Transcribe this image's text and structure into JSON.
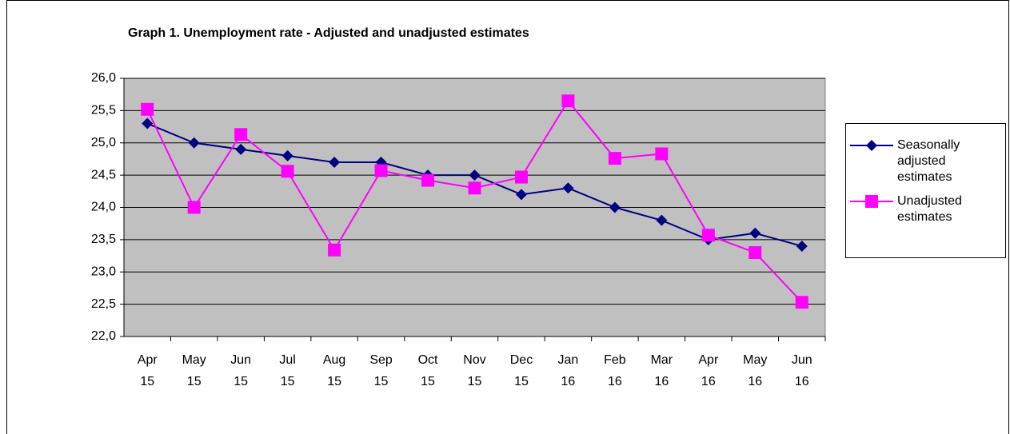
{
  "chart_data": {
    "type": "line",
    "title": "Graph 1. Unemployment rate - Adjusted and unadjusted estimates",
    "categories": [
      "Apr 15",
      "May 15",
      "Jun 15",
      "Jul 15",
      "Aug 15",
      "Sep 15",
      "Oct 15",
      "Nov 15",
      "Dec 15",
      "Jan 16",
      "Feb 16",
      "Mar 16",
      "Apr 16",
      "May 16",
      "Jun 16"
    ],
    "series": [
      {
        "name": "Seasonally adjusted estimates",
        "color": "#000080",
        "marker": "diamond",
        "values": [
          25.3,
          25.0,
          24.9,
          24.8,
          24.7,
          24.7,
          24.5,
          24.5,
          24.2,
          24.3,
          24.0,
          23.8,
          23.5,
          23.6,
          23.4
        ]
      },
      {
        "name": "Unadjusted estimates",
        "color": "#ff00ff",
        "marker": "square",
        "values": [
          25.52,
          24.0,
          25.13,
          24.56,
          23.34,
          24.57,
          24.42,
          24.3,
          24.47,
          25.65,
          24.76,
          24.83,
          23.57,
          23.3,
          22.53
        ]
      }
    ],
    "ylim": [
      22.0,
      26.0
    ],
    "yticks": [
      {
        "value": 22.0,
        "label": "22,0"
      },
      {
        "value": 22.5,
        "label": "22,5"
      },
      {
        "value": 23.0,
        "label": "23,0"
      },
      {
        "value": 23.5,
        "label": "23,5"
      },
      {
        "value": 24.0,
        "label": "24,0"
      },
      {
        "value": 24.5,
        "label": "24,5"
      },
      {
        "value": 25.0,
        "label": "25,0"
      },
      {
        "value": 25.5,
        "label": "25,5"
      },
      {
        "value": 26.0,
        "label": "26,0"
      }
    ],
    "grid": true,
    "plot_background": "#c0c0c0",
    "legend": "right"
  }
}
